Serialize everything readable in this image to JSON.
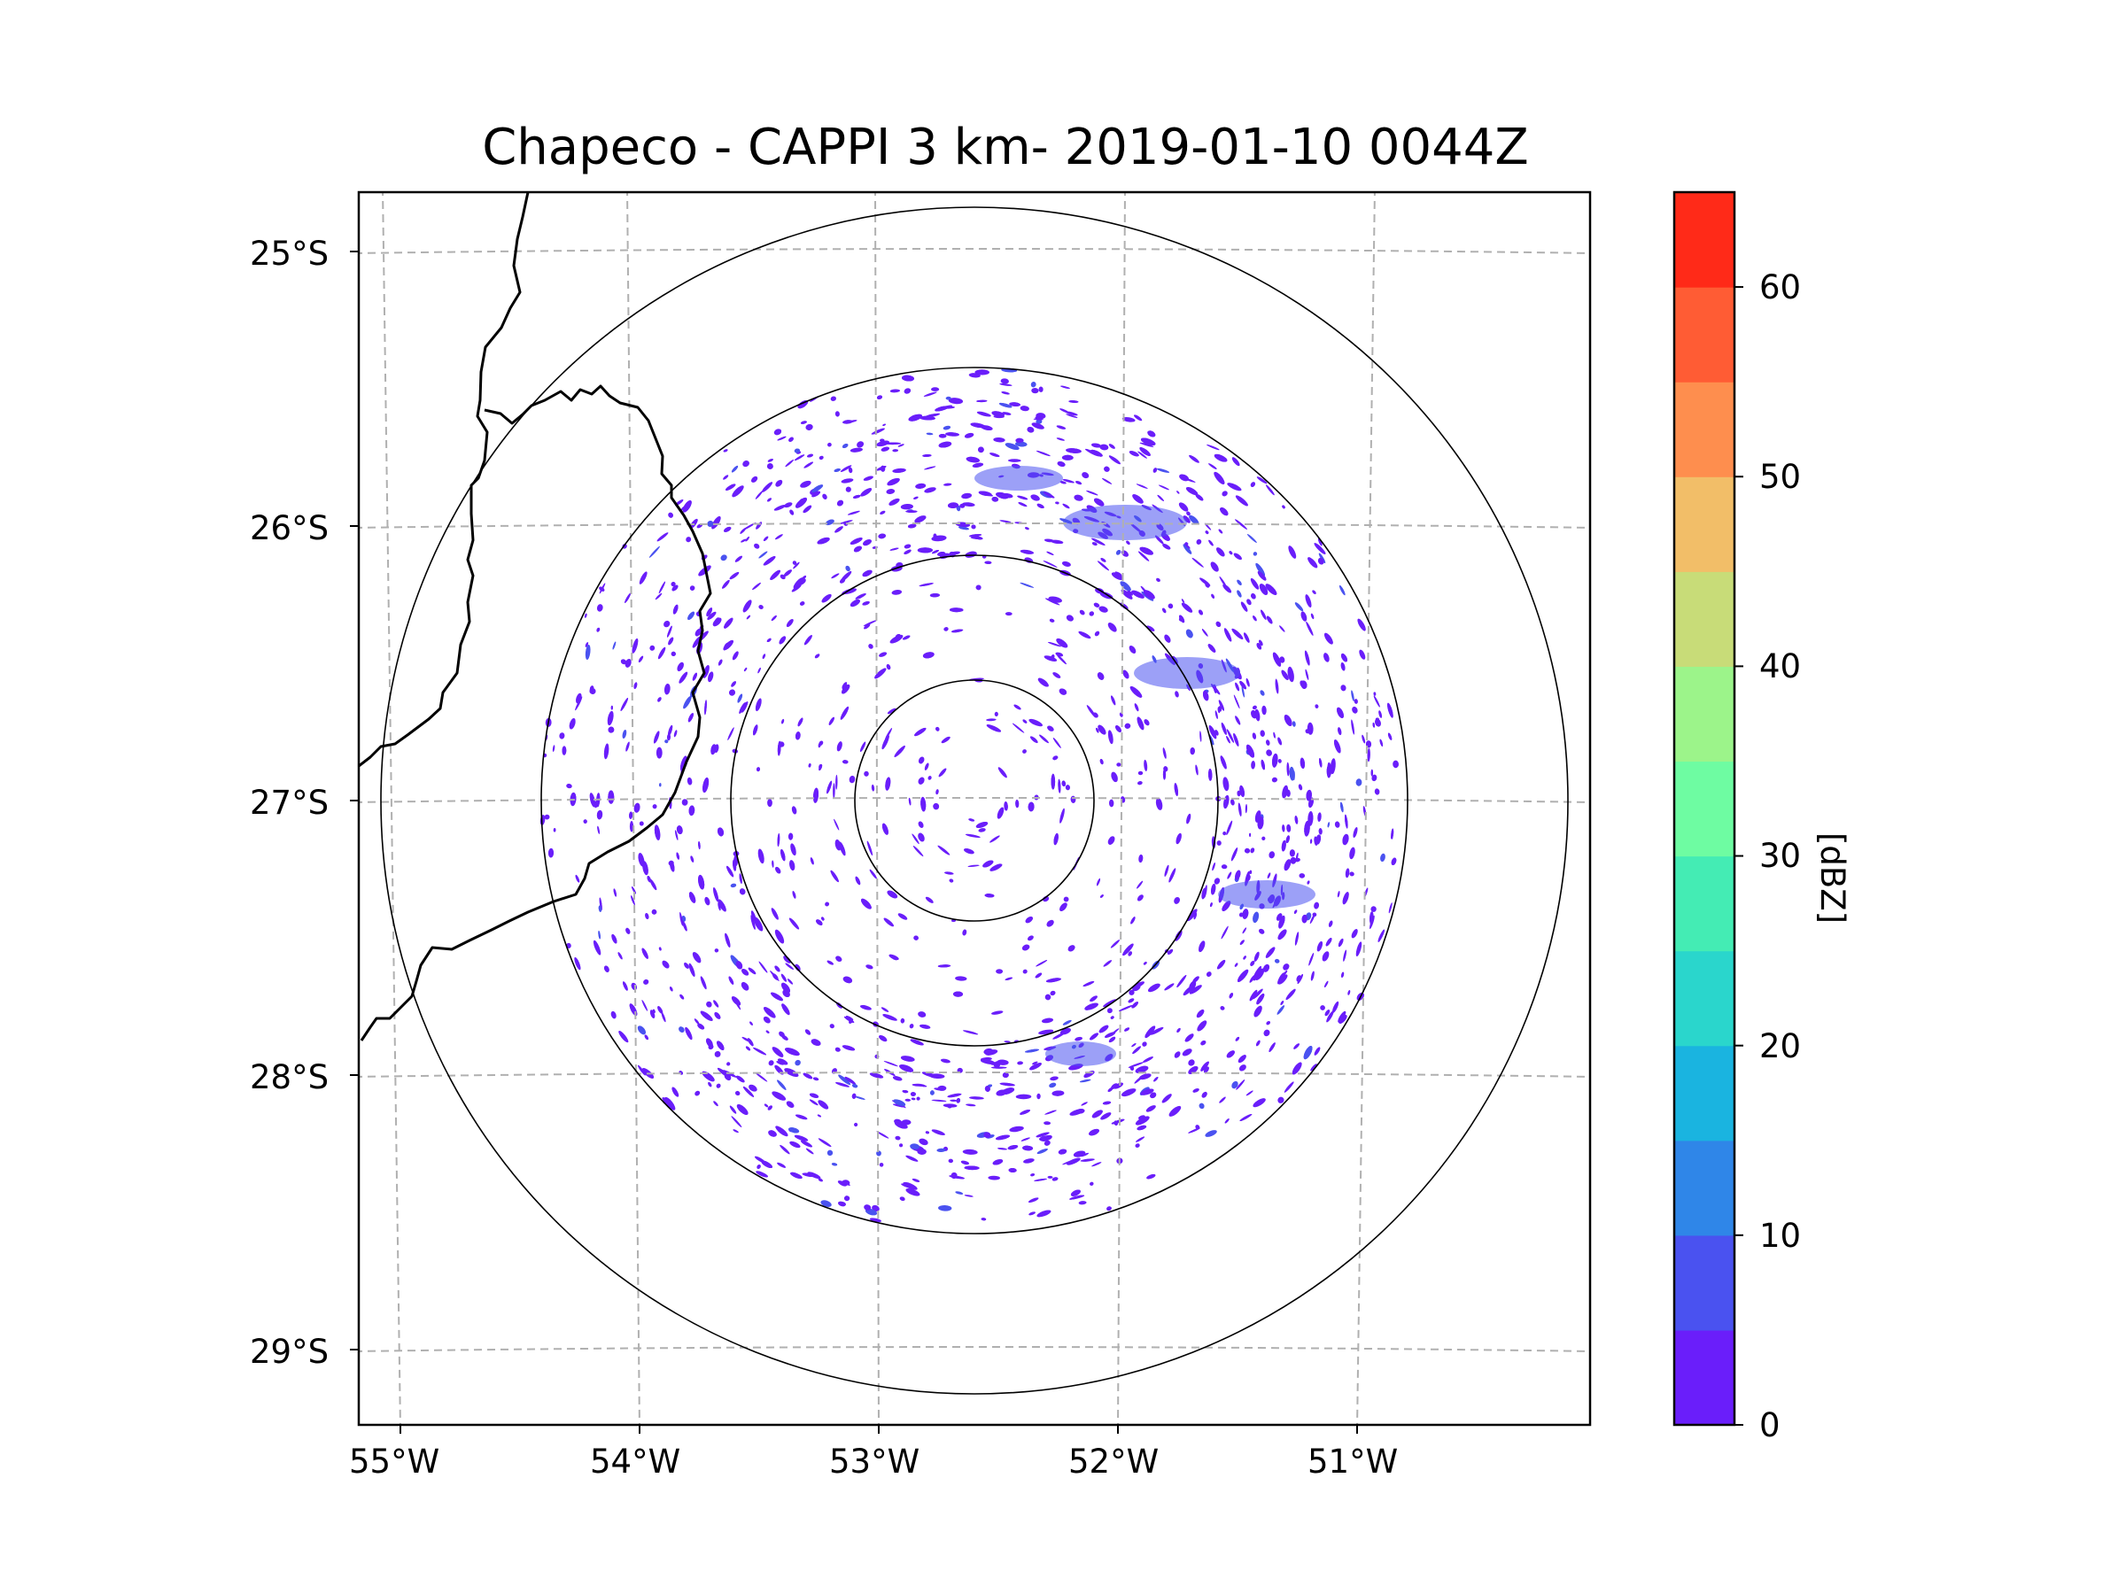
{
  "title": "Chapeco - CAPPI 3 km- 2019-01-10 0044Z",
  "map": {
    "lat_labels": [
      "25°S",
      "26°S",
      "27°S",
      "28°S",
      "29°S"
    ],
    "lon_labels": [
      "55°W",
      "54°W",
      "53°W",
      "52°W",
      "51°W"
    ],
    "range_rings": [
      "inner ring",
      "ring 2",
      "ring 3",
      "outer ring"
    ],
    "borders": [
      "Paraguay-Brazil border",
      "Argentina-Brazil border",
      "Brazil state border"
    ]
  },
  "colorbar": {
    "label": "[dBZ]",
    "ticks": [
      "0",
      "10",
      "20",
      "30",
      "40",
      "50",
      "60"
    ],
    "levels": [
      0,
      5,
      10,
      15,
      20,
      25,
      30,
      35,
      40,
      45,
      50,
      55,
      60,
      65
    ],
    "colors": [
      "#6a1efa",
      "#4a52f0",
      "#2f86e8",
      "#1ab4e0",
      "#2ad6cc",
      "#44ecb4",
      "#6efca2",
      "#9cf48a",
      "#c8dc78",
      "#f2be68",
      "#fe8e4e",
      "#ff5c34",
      "#ff2a18"
    ]
  },
  "echo_color": "#6a1efa",
  "echo_strong_color": "#4a52f0"
}
